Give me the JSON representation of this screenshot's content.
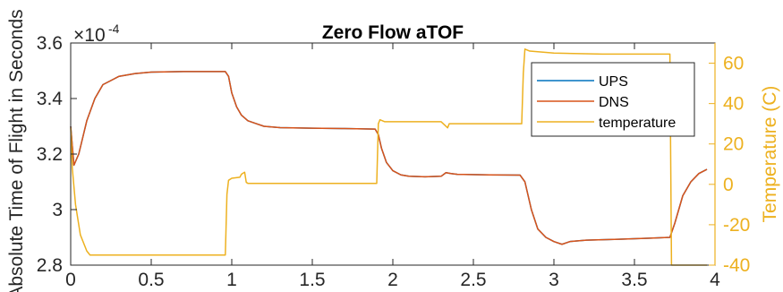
{
  "chart_data": {
    "type": "line",
    "title": "Zero Flow aTOF",
    "xlabel": "",
    "ylabel": "Absolute Time of Flight in Seconds",
    "ylabel_right": "Temperature (C)",
    "y_exponent_label": "×10",
    "y_exponent_power": "-4",
    "xlim": [
      0,
      4
    ],
    "ylim": [
      2.8,
      3.6
    ],
    "ylim_right": [
      -40,
      70
    ],
    "x_ticks": [
      0,
      0.5,
      1,
      1.5,
      2,
      2.5,
      3,
      3.5,
      4
    ],
    "x_tick_labels": [
      "0",
      "0.5",
      "1",
      "1.5",
      "2",
      "2.5",
      "3",
      "3.5",
      "4"
    ],
    "y_ticks": [
      2.8,
      3,
      3.2,
      3.4,
      3.6
    ],
    "y_tick_labels": [
      "2.8",
      "3",
      "3.2",
      "3.4",
      "3.6"
    ],
    "y_ticks_right": [
      -40,
      -20,
      0,
      20,
      40,
      60
    ],
    "y_tick_labels_right": [
      "-40",
      "-20",
      "0",
      "20",
      "40",
      "60"
    ],
    "grid": false,
    "legend_position": "top-right",
    "series": [
      {
        "name": "UPS",
        "axis": "left",
        "color": "#0072BD",
        "x": [
          0,
          0.02,
          0.05,
          0.1,
          0.15,
          0.2,
          0.3,
          0.4,
          0.5,
          0.7,
          0.96,
          0.98,
          1.0,
          1.03,
          1.06,
          1.1,
          1.15,
          1.2,
          1.3,
          1.5,
          1.7,
          1.89,
          1.91,
          1.93,
          1.96,
          2.0,
          2.05,
          2.1,
          2.2,
          2.3,
          2.33,
          2.36,
          2.4,
          2.6,
          2.79,
          2.82,
          2.86,
          2.9,
          2.95,
          3.0,
          3.05,
          3.1,
          3.2,
          3.4,
          3.6,
          3.72,
          3.75,
          3.8,
          3.85,
          3.9,
          3.95
        ],
        "values": [
          3.3,
          3.16,
          3.2,
          3.32,
          3.4,
          3.45,
          3.48,
          3.49,
          3.495,
          3.497,
          3.497,
          3.48,
          3.42,
          3.37,
          3.34,
          3.32,
          3.31,
          3.3,
          3.295,
          3.293,
          3.292,
          3.29,
          3.27,
          3.22,
          3.17,
          3.14,
          3.125,
          3.12,
          3.118,
          3.12,
          3.133,
          3.13,
          3.127,
          3.125,
          3.124,
          3.1,
          3.0,
          2.93,
          2.9,
          2.885,
          2.875,
          2.885,
          2.89,
          2.893,
          2.897,
          2.9,
          2.95,
          3.05,
          3.1,
          3.13,
          3.145
        ]
      },
      {
        "name": "DNS",
        "axis": "left",
        "color": "#D95319",
        "x": [
          0,
          0.02,
          0.05,
          0.1,
          0.15,
          0.2,
          0.3,
          0.4,
          0.5,
          0.7,
          0.96,
          0.98,
          1.0,
          1.03,
          1.06,
          1.1,
          1.15,
          1.2,
          1.3,
          1.5,
          1.7,
          1.89,
          1.91,
          1.93,
          1.96,
          2.0,
          2.05,
          2.1,
          2.2,
          2.3,
          2.33,
          2.36,
          2.4,
          2.6,
          2.79,
          2.82,
          2.86,
          2.9,
          2.95,
          3.0,
          3.05,
          3.1,
          3.2,
          3.4,
          3.6,
          3.72,
          3.75,
          3.8,
          3.85,
          3.9,
          3.95
        ],
        "values": [
          3.3,
          3.16,
          3.2,
          3.32,
          3.4,
          3.45,
          3.48,
          3.49,
          3.495,
          3.497,
          3.497,
          3.48,
          3.42,
          3.37,
          3.34,
          3.32,
          3.31,
          3.3,
          3.295,
          3.293,
          3.292,
          3.29,
          3.27,
          3.22,
          3.17,
          3.14,
          3.125,
          3.12,
          3.118,
          3.12,
          3.133,
          3.13,
          3.127,
          3.125,
          3.124,
          3.1,
          3.0,
          2.93,
          2.9,
          2.885,
          2.875,
          2.885,
          2.89,
          2.893,
          2.897,
          2.9,
          2.95,
          3.05,
          3.1,
          3.13,
          3.145
        ]
      },
      {
        "name": "temperature",
        "axis": "right",
        "color": "#EDB120",
        "x": [
          0,
          0.01,
          0.03,
          0.06,
          0.1,
          0.12,
          0.2,
          0.5,
          0.8,
          0.96,
          0.97,
          0.98,
          1.0,
          1.05,
          1.06,
          1.08,
          1.09,
          1.1,
          1.4,
          1.7,
          1.9,
          1.91,
          1.92,
          1.95,
          2.3,
          2.34,
          2.35,
          2.4,
          2.7,
          2.8,
          2.81,
          2.82,
          2.85,
          3.0,
          3.3,
          3.6,
          3.72,
          3.73,
          3.75,
          3.95
        ],
        "values": [
          28,
          8,
          -10,
          -25,
          -33,
          -35,
          -35,
          -35,
          -35,
          -35,
          -5,
          2,
          3,
          3.5,
          5,
          6,
          1,
          0.5,
          0.5,
          0.5,
          0.5,
          30,
          32,
          31,
          31,
          28,
          30,
          30,
          30,
          30,
          55,
          67,
          66,
          65,
          64.5,
          64.5,
          64.5,
          -40,
          -40,
          -40
        ]
      }
    ]
  }
}
